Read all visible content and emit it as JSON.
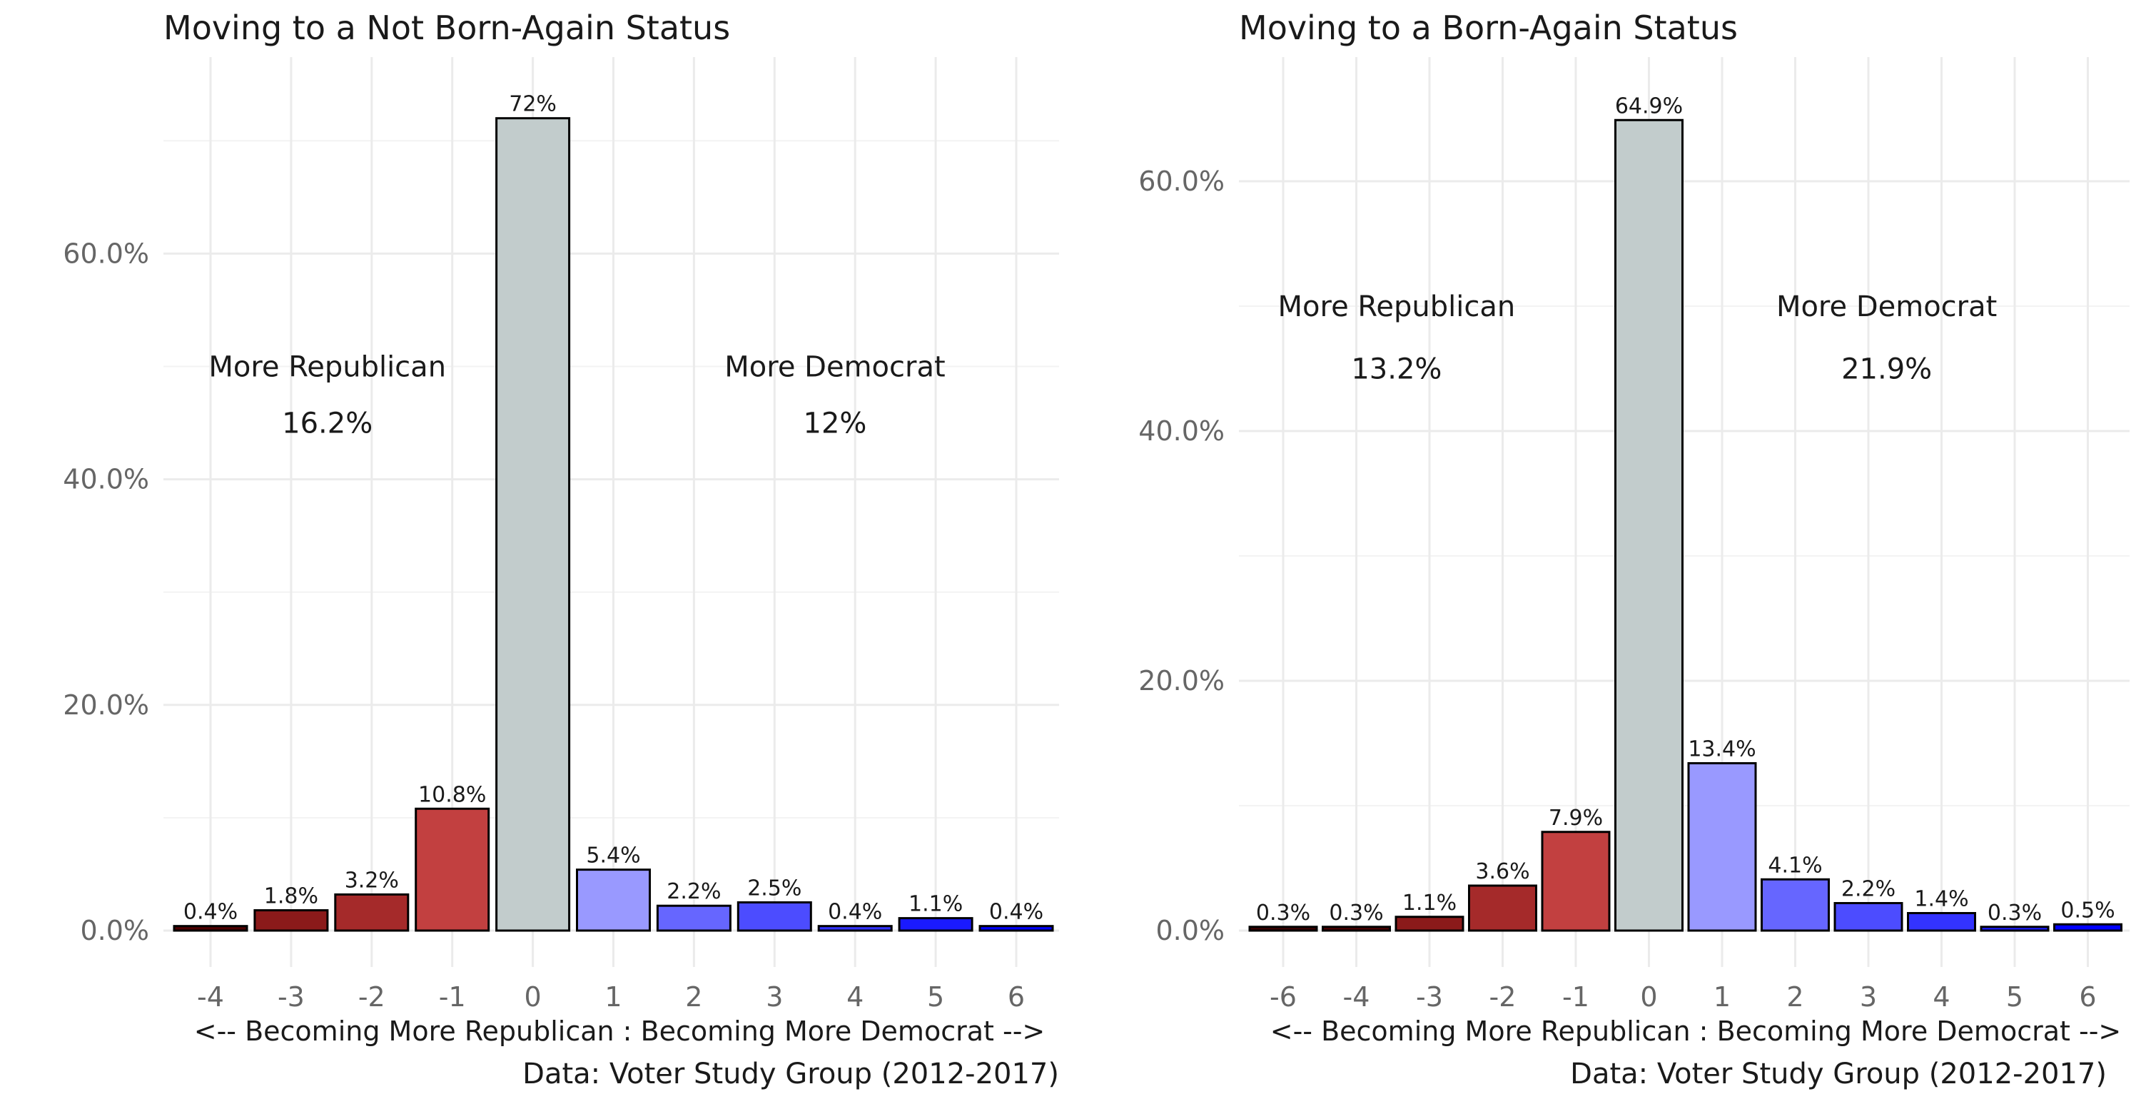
{
  "chart_data": [
    {
      "type": "bar",
      "title": "Moving to a Not Born-Again Status",
      "xlabel": "<-- Becoming More Republican : Becoming More Democrat -->",
      "caption": "Data: Voter Study Group (2012-2017)",
      "ylim": [
        0,
        76
      ],
      "yticks": [
        "0.0%",
        "20.0%",
        "40.0%",
        "60.0%"
      ],
      "grid": true,
      "categories": [
        "-4",
        "-3",
        "-2",
        "-1",
        "0",
        "1",
        "2",
        "3",
        "4",
        "5",
        "6"
      ],
      "values": [
        0.4,
        1.8,
        3.2,
        10.8,
        72,
        5.4,
        2.2,
        2.5,
        0.4,
        1.1,
        0.4
      ],
      "labels": [
        "0.4%",
        "1.8%",
        "3.2%",
        "10.8%",
        "72%",
        "5.4%",
        "2.2%",
        "2.5%",
        "0.4%",
        "1.1%",
        "0.4%"
      ],
      "colors": [
        "#4d0000",
        "#8b1a1a",
        "#a52a2a",
        "#c24040",
        "#c2cccc",
        "#9999ff",
        "#6666ff",
        "#4c4cff",
        "#3333ff",
        "#1a1aff",
        "#0000ff"
      ],
      "annotations": [
        {
          "text": "More Republican",
          "value": "16.2%",
          "x": -2.55,
          "y_text": 50,
          "y_value": 45
        },
        {
          "text": "More Democrat",
          "value": "12%",
          "x": 3.75,
          "y_text": 50,
          "y_value": 45
        }
      ]
    },
    {
      "type": "bar",
      "title": "Moving to a Born-Again Status",
      "xlabel": "<-- Becoming More Republican : Becoming More Democrat -->",
      "caption": "Data: Voter Study Group (2012-2017)",
      "ylim": [
        0,
        69
      ],
      "yticks": [
        "0.0%",
        "20.0%",
        "40.0%",
        "60.0%"
      ],
      "grid": true,
      "categories": [
        "-6",
        "-4",
        "-3",
        "-2",
        "-1",
        "0",
        "1",
        "2",
        "3",
        "4",
        "5",
        "6"
      ],
      "values": [
        0.3,
        0.3,
        1.1,
        3.6,
        7.9,
        64.9,
        13.4,
        4.1,
        2.2,
        1.4,
        0.3,
        0.5
      ],
      "labels": [
        "0.3%",
        "0.3%",
        "1.1%",
        "3.6%",
        "7.9%",
        "64.9%",
        "13.4%",
        "4.1%",
        "2.2%",
        "1.4%",
        "0.3%",
        "0.5%"
      ],
      "colors": [
        "#3d0000",
        "#4d0000",
        "#8b1a1a",
        "#a52a2a",
        "#c24040",
        "#c2cccc",
        "#9999ff",
        "#6666ff",
        "#4c4cff",
        "#3333ff",
        "#1a1aff",
        "#0000ff"
      ],
      "annotations": [
        {
          "text": "More Republican",
          "value": "13.2%",
          "x": -3.45,
          "y_text": 50,
          "y_value": 45
        },
        {
          "text": "More Democrat",
          "value": "21.9%",
          "x": 3.25,
          "y_text": 50,
          "y_value": 45
        }
      ]
    }
  ]
}
